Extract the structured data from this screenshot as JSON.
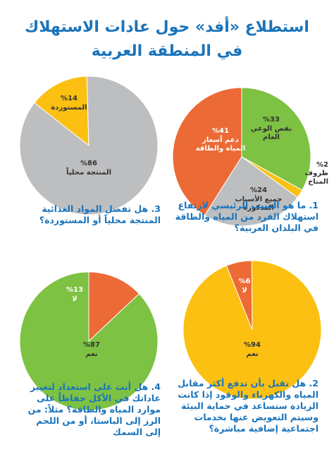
{
  "header": {
    "title_line1": "استطلاع «أفد» حول عادات الاستهلاك",
    "title_line2": "في المنطقة العربية"
  },
  "colors": {
    "title_blue": "#1a74bb",
    "green": "#7dc242",
    "orange": "#ec6a35",
    "gray": "#bcbec0",
    "yellow": "#fbc012"
  },
  "questions": {
    "q1": "1. ما هو السبب الرئيسي لارتفاع استهلاك الفرد من المياه والطاقة في البلدان العربية؟",
    "q2": "2. هل تقبل بأن تدفع أكثر مقابل المياه والكهرباء والوقود إذا كانت الزيادة ستساعد في حماية البيئة وسيتم التعويض عنها بخدمات اجتماعية إضافية مباشرة؟",
    "q3": "3. هل تفضل المواد الغذائية المنتجة محلياً أو المستوردة؟",
    "q4": "4. هل أنت على استعداد لتغيير عاداتك في الأكل حفاظاً على موارد المياه والطاقة؟ مثلاً: من الرز إلى الباستا، أو من اللحم إلى السمك"
  },
  "chart_data": [
    {
      "type": "pie",
      "id": "q1",
      "slices": [
        {
          "label": "نقص الوعي العام",
          "value": 33,
          "value_text": "%33",
          "color": "#7dc242"
        },
        {
          "label": "ظروف المناخ",
          "value": 2,
          "value_text": "%2",
          "color": "#fbc012"
        },
        {
          "label": "جميع الأسباب المذكورة",
          "value": 24,
          "value_text": "%24",
          "color": "#bcbec0"
        },
        {
          "label": "دعم أسعار المياه والطاقة",
          "value": 41,
          "value_text": "%41",
          "color": "#ec6a35"
        }
      ]
    },
    {
      "type": "pie",
      "id": "q3",
      "slices": [
        {
          "label": "المستوردة",
          "value": 14,
          "value_text": "%14",
          "color": "#fbc012"
        },
        {
          "label": "المنتجة محلياً",
          "value": 86,
          "value_text": "%86",
          "color": "#bcbec0"
        }
      ]
    },
    {
      "type": "pie",
      "id": "q2",
      "slices": [
        {
          "label": "لا",
          "value": 6,
          "value_text": "%6",
          "color": "#ec6a35"
        },
        {
          "label": "نعم",
          "value": 94,
          "value_text": "%94",
          "color": "#fbc012"
        }
      ]
    },
    {
      "type": "pie",
      "id": "q4",
      "slices": [
        {
          "label": "لا",
          "value": 13,
          "value_text": "%13",
          "color": "#ec6a35"
        },
        {
          "label": "نعم",
          "value": 87,
          "value_text": "%87",
          "color": "#7dc242"
        }
      ]
    }
  ]
}
